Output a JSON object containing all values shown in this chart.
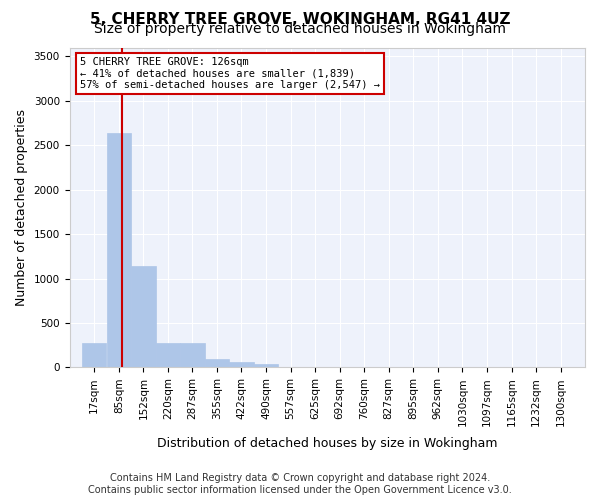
{
  "title": "5, CHERRY TREE GROVE, WOKINGHAM, RG41 4UZ",
  "subtitle": "Size of property relative to detached houses in Wokingham",
  "xlabel": "Distribution of detached houses by size in Wokingham",
  "ylabel": "Number of detached properties",
  "bar_color": "#aec6e8",
  "bar_edge_color": "#aec6e8",
  "background_color": "#eef2fb",
  "grid_color": "#ffffff",
  "annotation_box_text": "5 CHERRY TREE GROVE: 126sqm\n← 41% of detached houses are smaller (1,839)\n57% of semi-detached houses are larger (2,547) →",
  "annotation_box_color": "#cc0000",
  "red_line_x": 126,
  "categories": [
    "17sqm",
    "85sqm",
    "152sqm",
    "220sqm",
    "287sqm",
    "355sqm",
    "422sqm",
    "490sqm",
    "557sqm",
    "625sqm",
    "692sqm",
    "760sqm",
    "827sqm",
    "895sqm",
    "962sqm",
    "1030sqm",
    "1097sqm",
    "1165sqm",
    "1232sqm",
    "1300sqm"
  ],
  "bin_edges": [
    17,
    85,
    152,
    220,
    287,
    355,
    422,
    490,
    557,
    625,
    692,
    760,
    827,
    895,
    962,
    1030,
    1097,
    1165,
    1232,
    1300,
    1367
  ],
  "bar_heights": [
    270,
    2640,
    1140,
    280,
    280,
    90,
    65,
    40,
    0,
    0,
    0,
    0,
    0,
    0,
    0,
    0,
    0,
    0,
    0,
    0
  ],
  "ylim": [
    0,
    3600
  ],
  "yticks": [
    0,
    500,
    1000,
    1500,
    2000,
    2500,
    3000,
    3500
  ],
  "footnote": "Contains HM Land Registry data © Crown copyright and database right 2024.\nContains public sector information licensed under the Open Government Licence v3.0.",
  "title_fontsize": 11,
  "subtitle_fontsize": 10,
  "ylabel_fontsize": 9,
  "xlabel_fontsize": 9,
  "tick_fontsize": 7.5,
  "footnote_fontsize": 7
}
